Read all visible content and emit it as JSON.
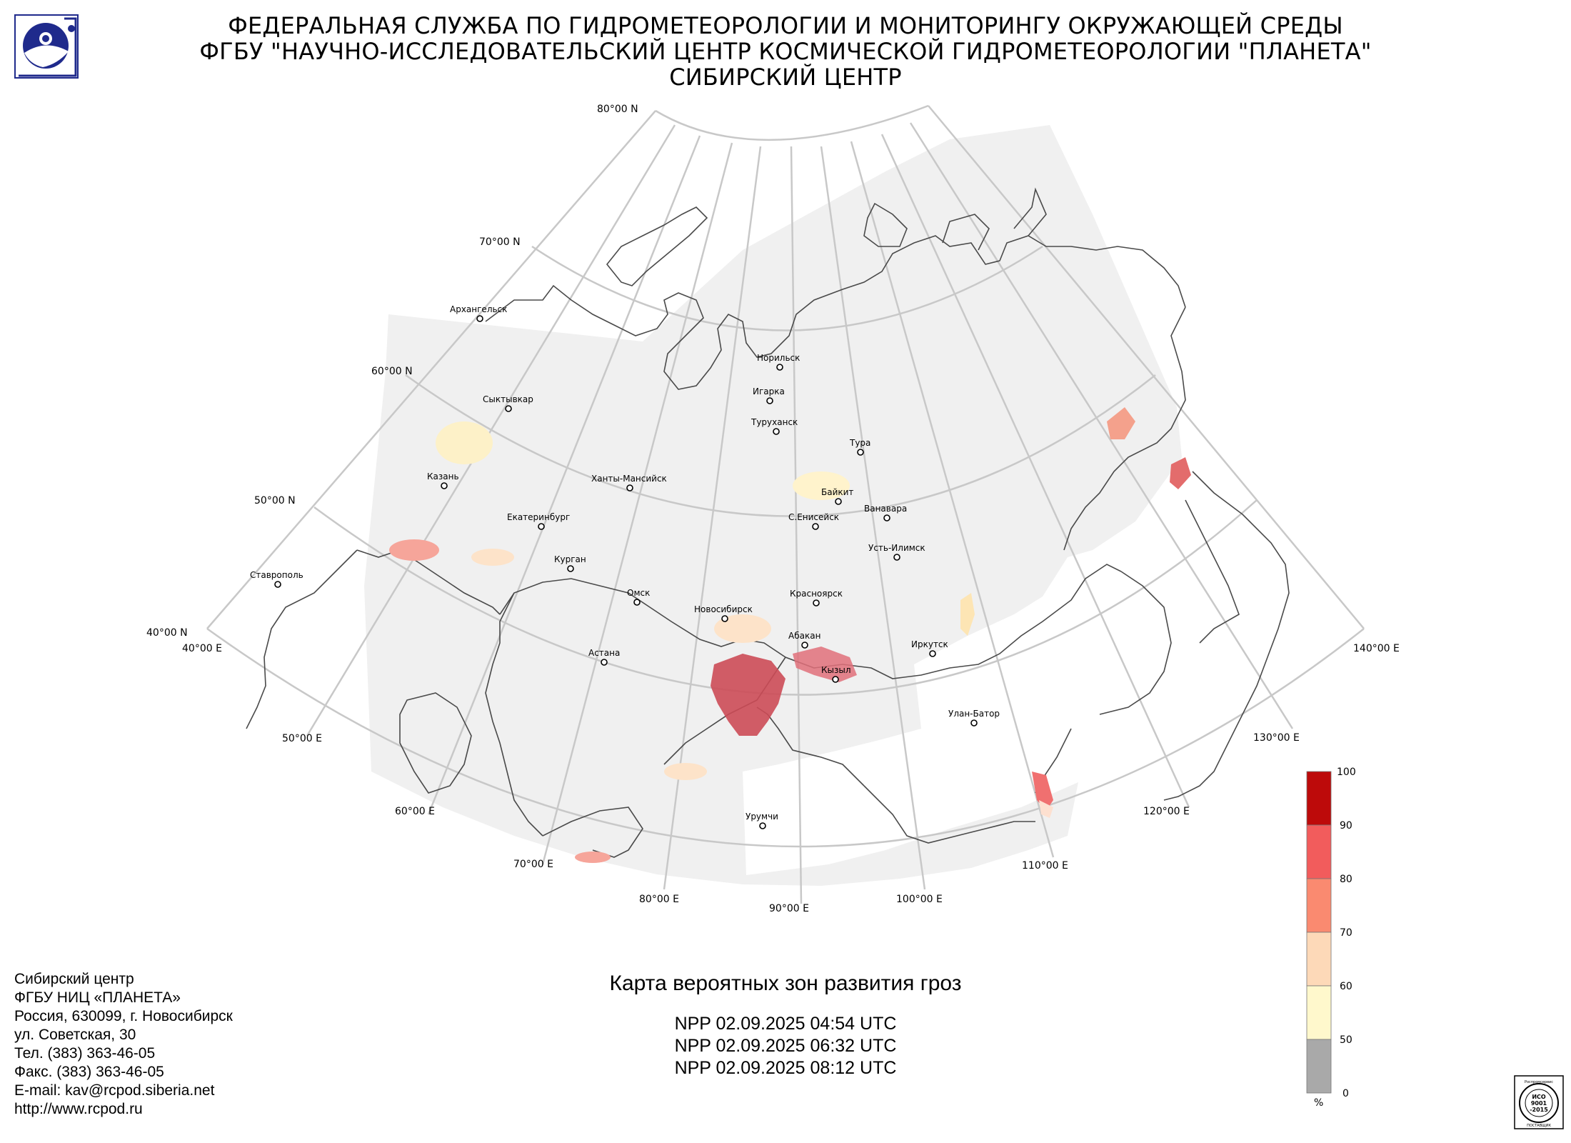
{
  "header": {
    "line1": "ФЕДЕРАЛЬНАЯ СЛУЖБА ПО ГИДРОМЕТЕОРОЛОГИИ И МОНИТОРИНГУ ОКРУЖАЮЩЕЙ СРЕДЫ",
    "line2": "ФГБУ \"НАУЧНО-ИССЛЕДОВАТЕЛЬСКИЙ ЦЕНТР КОСМИЧЕСКОЙ ГИДРОМЕТЕОРОЛОГИИ \"ПЛАНЕТА\"",
    "line3": "СИБИРСКИЙ ЦЕНТР"
  },
  "map": {
    "lat_labels": [
      "80°00 N",
      "70°00 N",
      "60°00 N",
      "50°00 N",
      "40°00 N"
    ],
    "lon_labels": [
      "40°00 E",
      "50°00 E",
      "60°00 E",
      "70°00 E",
      "80°00 E",
      "90°00 E",
      "100°00 E",
      "110°00 E",
      "120°00 E",
      "130°00 E",
      "140°00 E"
    ],
    "cities": [
      "Архангельск",
      "Сыктывкар",
      "Норильск",
      "Игарка",
      "Туруханск",
      "Тура",
      "Казань",
      "Ханты-Мансийск",
      "Байкит",
      "Ванавара",
      "С.Енисейск",
      "Екатеринбург",
      "Курган",
      "Усть-Илимск",
      "Ставрополь",
      "Омск",
      "Красноярск",
      "Новосибирск",
      "Абакан",
      "Иркутск",
      "Астана",
      "Кызыл",
      "Улан-Батор",
      "Урумчи"
    ]
  },
  "legend": {
    "ticks": [
      "100",
      "90",
      "80",
      "70",
      "60",
      "50",
      "0"
    ],
    "unit": "%",
    "colors": [
      "#bd0a0a",
      "#f25c5c",
      "#fa8a70",
      "#fdd9b8",
      "#fff8cc",
      "#a9a9a9"
    ]
  },
  "map_title": "Карта вероятных зон развития гроз",
  "passes": [
    "NPP 02.09.2025  04:54 UTC",
    "NPP 02.09.2025  06:32 UTC",
    "NPP 02.09.2025  08:12 UTC"
  ],
  "contacts": [
    "Сибирский центр",
    "ФГБУ НИЦ «ПЛАНЕТА»",
    "Россия, 630099, г. Новосибирск",
    "ул. Советская, 30",
    "Тел. (383) 363-46-05",
    "Факс. (383) 363-46-05",
    "E-mail: kav@rcpod.siberia.net",
    "http://www.rcpod.ru"
  ],
  "iso_logo": {
    "name": "Роспромсервис",
    "line1": "ИСО",
    "line2": "9001",
    "line3": "-2015",
    "footer": "ПОСТАВЩИК"
  }
}
